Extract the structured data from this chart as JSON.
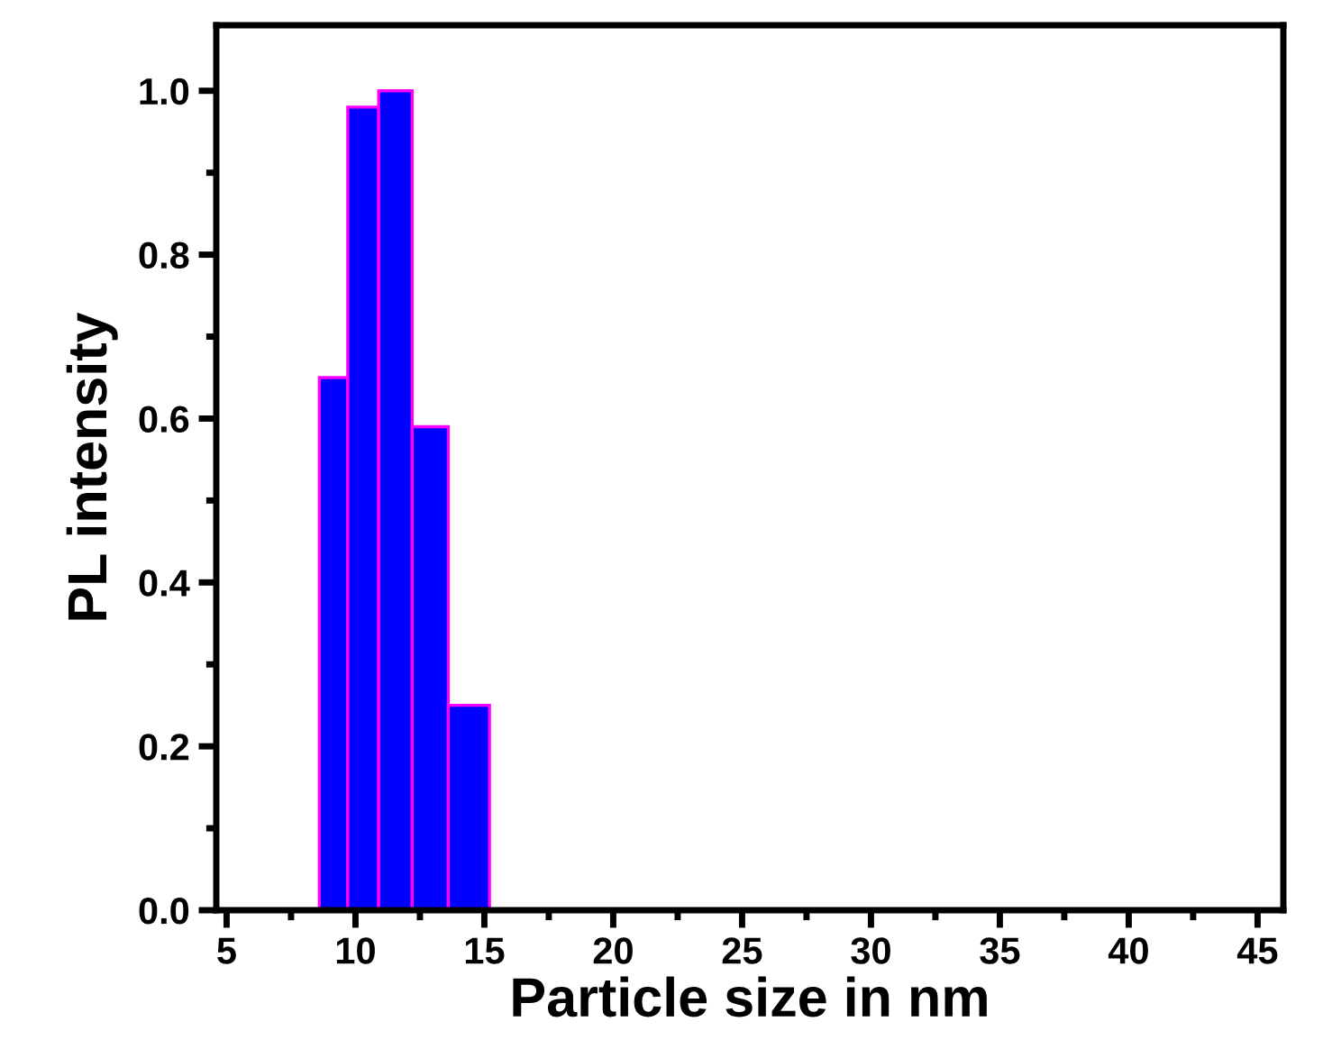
{
  "chart_data": {
    "type": "histogram",
    "xlabel": "Particle size in nm",
    "ylabel": "PL intensity",
    "bins": [
      8.6,
      9.7,
      10.9,
      12.2,
      13.6,
      15.2
    ],
    "values": [
      0.65,
      0.98,
      1.0,
      0.59,
      0.25
    ],
    "color": "#0000ff",
    "xlim": [
      4.6,
      46
    ],
    "ylim": [
      0,
      1.08
    ],
    "xticks": [
      5,
      {
        "value": 7.5,
        "label": null
      },
      10,
      {
        "value": 12.5,
        "label": null
      },
      15,
      {
        "value": 17.5,
        "label": null
      },
      20,
      {
        "value": 22.5,
        "label": null
      },
      25,
      {
        "value": 27.5,
        "label": null
      },
      30,
      {
        "value": 32.5,
        "label": null
      },
      35,
      {
        "value": 37.5,
        "label": null
      },
      40,
      {
        "value": 42.5,
        "label": null
      },
      45
    ],
    "yticks": [
      {
        "value": 0,
        "label": "0.0"
      },
      {
        "value": 0.1,
        "label": null
      },
      {
        "value": 0.2,
        "label": "0.2"
      },
      {
        "value": 0.3,
        "label": null
      },
      {
        "value": 0.4,
        "label": "0.4"
      },
      {
        "value": 0.5,
        "label": null
      },
      {
        "value": 0.6,
        "label": "0.6"
      },
      {
        "value": 0.7,
        "label": null
      },
      {
        "value": 0.8,
        "label": "0.8"
      },
      {
        "value": 0.9,
        "label": null
      },
      {
        "value": 1.0,
        "label": "1.0"
      }
    ],
    "grid": false
  }
}
